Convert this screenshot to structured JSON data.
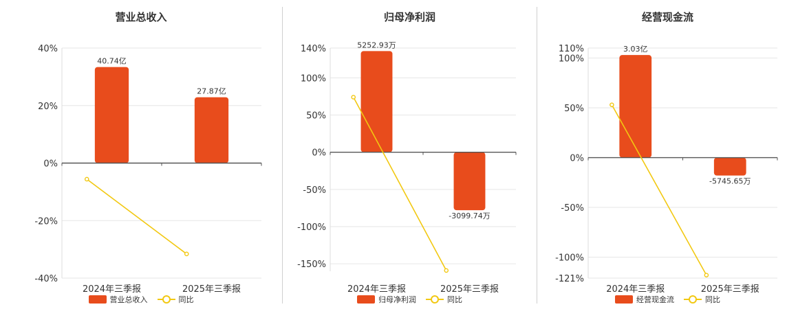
{
  "colors": {
    "bar": "#e84c1c",
    "line": "#f2c811",
    "grid": "#e6e6e6",
    "axis": "#555555"
  },
  "chart_data": [
    {
      "type": "bar",
      "title": "营业总收入",
      "categories": [
        "2024年三季报",
        "2025年三季报"
      ],
      "series": [
        {
          "name": "营业总收入",
          "type": "bar",
          "values": [
            33.4,
            22.9
          ],
          "labels": [
            "40.74亿",
            "27.87亿"
          ]
        },
        {
          "name": "同比",
          "type": "line",
          "values": [
            -5.6,
            -31.6
          ]
        }
      ],
      "ylim": [
        -40,
        40
      ],
      "yticks": [
        40,
        20,
        0,
        -20,
        -40
      ],
      "ytick_labels": [
        "40%",
        "20%",
        "0%",
        "-20%",
        "-40%"
      ],
      "grid": true,
      "legend_position": "bottom"
    },
    {
      "type": "bar",
      "title": "归母净利润",
      "categories": [
        "2024年三季报",
        "2025年三季报"
      ],
      "series": [
        {
          "name": "归母净利润",
          "type": "bar",
          "values": [
            136,
            -78
          ],
          "labels": [
            "5252.93万",
            "-3099.74万"
          ]
        },
        {
          "name": "同比",
          "type": "line",
          "values": [
            74,
            -159
          ]
        }
      ],
      "ylim": [
        -160,
        140
      ],
      "yticks": [
        140,
        100,
        50,
        0,
        -50,
        -100,
        -150
      ],
      "ytick_labels": [
        "140%",
        "100%",
        "50%",
        "0%",
        "-50%",
        "-100%",
        "-150%"
      ],
      "grid": true,
      "legend_position": "bottom"
    },
    {
      "type": "bar",
      "title": "经营现金流",
      "categories": [
        "2024年三季报",
        "2025年三季报"
      ],
      "series": [
        {
          "name": "经营现金流",
          "type": "bar",
          "values": [
            103,
            -18
          ],
          "labels": [
            "3.03亿",
            "-5745.65万"
          ]
        },
        {
          "name": "同比",
          "type": "line",
          "values": [
            53,
            -118
          ]
        }
      ],
      "ylim": [
        -121,
        110
      ],
      "yticks": [
        110,
        100,
        50,
        0,
        -50,
        -100,
        -121
      ],
      "ytick_labels": [
        "110%",
        "100%",
        "50%",
        "0%",
        "-50%",
        "-100%",
        "-121%"
      ],
      "grid": true,
      "legend_position": "bottom"
    }
  ]
}
